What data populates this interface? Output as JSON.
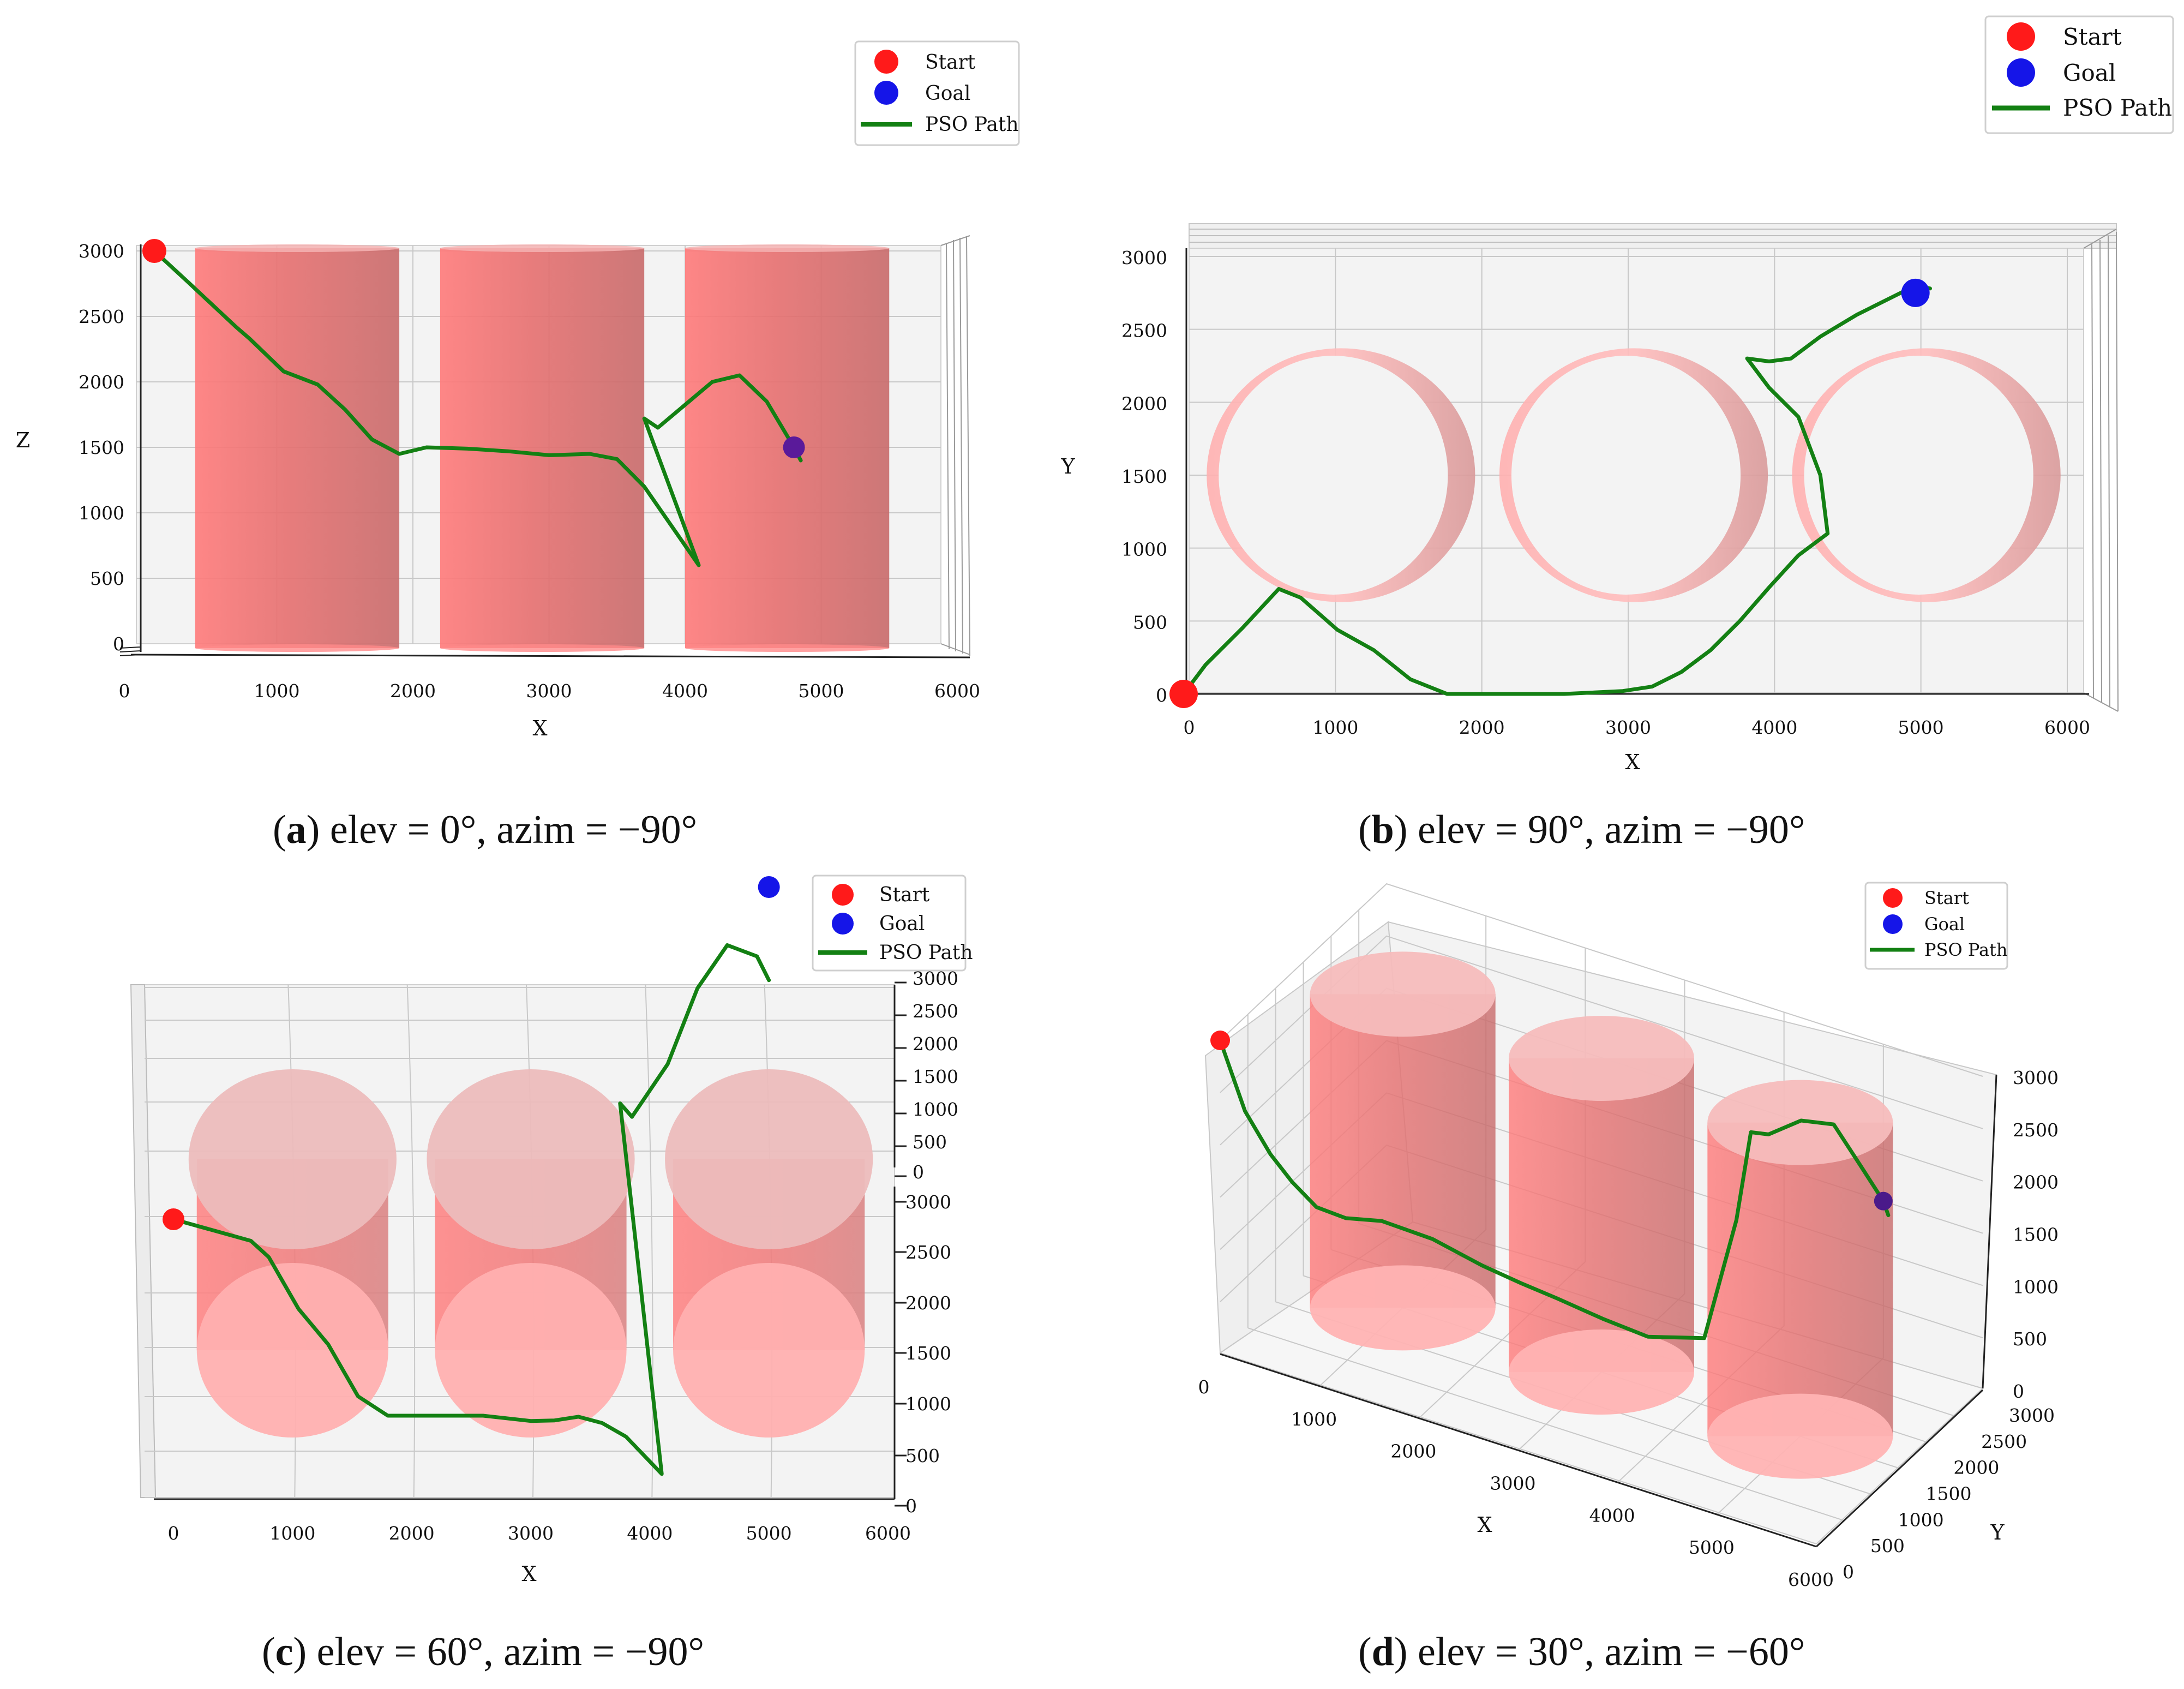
{
  "colors": {
    "start": "#ff1a1a",
    "goal": "#1515e8",
    "path": "#138013",
    "cylinder": "#ff6b6b",
    "pane": "#f3f3f3",
    "grid": "#c8c8c8"
  },
  "legend": {
    "start": "Start",
    "goal": "Goal",
    "path": "PSO Path"
  },
  "chart_data": [
    {
      "id": "a",
      "type": "line",
      "view": {
        "elev": 0,
        "azim": -90
      },
      "caption": {
        "letter": "a",
        "text": "elev = 0°, azim = −90°"
      },
      "title": "",
      "xlabel": "X",
      "zlabel": "Z",
      "xlim": [
        0,
        6000
      ],
      "zlim": [
        0,
        3000
      ],
      "xticks": [
        "0",
        "1000",
        "2000",
        "3000",
        "4000",
        "5000",
        "6000"
      ],
      "zticks": [
        "0",
        "500",
        "1000",
        "1500",
        "2000",
        "2500",
        "3000"
      ],
      "legend_position": "top-right",
      "start": [
        100,
        3000
      ],
      "goal": [
        4800,
        1500
      ],
      "path_xz": [
        [
          100,
          3000
        ],
        [
          350,
          2760
        ],
        [
          700,
          2420
        ],
        [
          800,
          2330
        ],
        [
          1050,
          2080
        ],
        [
          1300,
          1980
        ],
        [
          1500,
          1790
        ],
        [
          1700,
          1560
        ],
        [
          1900,
          1450
        ],
        [
          2100,
          1500
        ],
        [
          2400,
          1490
        ],
        [
          2700,
          1470
        ],
        [
          3000,
          1440
        ],
        [
          3300,
          1450
        ],
        [
          3500,
          1410
        ],
        [
          3700,
          1200
        ],
        [
          4100,
          600
        ],
        [
          3700,
          1720
        ],
        [
          3800,
          1650
        ],
        [
          4200,
          2000
        ],
        [
          4400,
          2050
        ],
        [
          4600,
          1850
        ],
        [
          4800,
          1500
        ],
        [
          4850,
          1400
        ]
      ],
      "obstacles": [
        {
          "x_min": 400,
          "x_max": 1900
        },
        {
          "x_min": 2200,
          "x_max": 3700
        },
        {
          "x_min": 4000,
          "x_max": 5500
        }
      ]
    },
    {
      "id": "b",
      "type": "line",
      "view": {
        "elev": 90,
        "azim": -90
      },
      "caption": {
        "letter": "b",
        "text": "elev = 90°, azim = −90°"
      },
      "title": "",
      "xlabel": "X",
      "ylabel": "Y",
      "xlim": [
        0,
        6000
      ],
      "ylim": [
        0,
        3000
      ],
      "xticks": [
        "0",
        "1000",
        "2000",
        "3000",
        "4000",
        "5000",
        "6000"
      ],
      "yticks": [
        "0",
        "500",
        "1000",
        "1500",
        "2000",
        "2500",
        "3000"
      ],
      "legend_position": "top-right",
      "start": [
        0,
        0
      ],
      "goal": [
        5000,
        2750
      ],
      "path_xy": [
        [
          0,
          0
        ],
        [
          150,
          200
        ],
        [
          400,
          450
        ],
        [
          650,
          720
        ],
        [
          800,
          660
        ],
        [
          1050,
          440
        ],
        [
          1300,
          300
        ],
        [
          1550,
          100
        ],
        [
          1800,
          0
        ],
        [
          2200,
          0
        ],
        [
          2600,
          0
        ],
        [
          3000,
          20
        ],
        [
          3200,
          50
        ],
        [
          3400,
          150
        ],
        [
          3600,
          300
        ],
        [
          3800,
          500
        ],
        [
          4000,
          730
        ],
        [
          4200,
          950
        ],
        [
          4400,
          1100
        ],
        [
          4350,
          1500
        ],
        [
          4200,
          1900
        ],
        [
          4000,
          2100
        ],
        [
          3850,
          2300
        ],
        [
          4000,
          2280
        ],
        [
          4150,
          2300
        ],
        [
          4350,
          2450
        ],
        [
          4600,
          2600
        ],
        [
          4900,
          2750
        ],
        [
          5000,
          2800
        ],
        [
          5100,
          2780
        ]
      ],
      "obstacles": [
        {
          "cx": 1000,
          "cy": 1500,
          "r": 850
        },
        {
          "cx": 3000,
          "cy": 1500,
          "r": 850
        },
        {
          "cx": 5000,
          "cy": 1500,
          "r": 850
        }
      ]
    },
    {
      "id": "c",
      "type": "line",
      "view": {
        "elev": 60,
        "azim": -90
      },
      "caption": {
        "letter": "c",
        "text": "elev = 60°, azim = −90°"
      },
      "title": "",
      "xlabel": "X",
      "xlim": [
        0,
        6000
      ],
      "ylim": [
        0,
        3000
      ],
      "zlim": [
        0,
        3000
      ],
      "xticks": [
        "0",
        "1000",
        "2000",
        "3000",
        "4000",
        "5000",
        "6000"
      ],
      "zticks": [
        "0",
        "500",
        "1000",
        "1500",
        "2000",
        "2500",
        "3000"
      ],
      "yticks": [
        "0",
        "500",
        "1000",
        "1500",
        "2000",
        "2500",
        "3000"
      ],
      "legend_position": "top-right",
      "start": [
        0,
        0,
        3000
      ],
      "goal": [
        5000,
        3000,
        1500
      ],
      "path_xyz": [
        [
          0,
          0,
          3000
        ],
        [
          650,
          700,
          2500
        ],
        [
          800,
          650,
          2400
        ],
        [
          1050,
          450,
          2100
        ],
        [
          1300,
          300,
          1900
        ],
        [
          1550,
          100,
          1600
        ],
        [
          1800,
          0,
          1500
        ],
        [
          2200,
          0,
          1500
        ],
        [
          2600,
          0,
          1500
        ],
        [
          3000,
          20,
          1450
        ],
        [
          3200,
          50,
          1440
        ],
        [
          3400,
          150,
          1420
        ],
        [
          3600,
          300,
          1300
        ],
        [
          3800,
          500,
          1100
        ],
        [
          4100,
          950,
          600
        ],
        [
          3750,
          2300,
          1700
        ],
        [
          3850,
          2280,
          1650
        ],
        [
          4150,
          2300,
          2000
        ],
        [
          4400,
          2500,
          2050
        ],
        [
          4650,
          2700,
          1850
        ],
        [
          4900,
          2800,
          1500
        ],
        [
          5000,
          2750,
          1450
        ]
      ],
      "obstacles": [
        {
          "cx": 1000,
          "cy": 1500,
          "r": 850
        },
        {
          "cx": 3000,
          "cy": 1500,
          "r": 850
        },
        {
          "cx": 5000,
          "cy": 1500,
          "r": 850
        }
      ]
    },
    {
      "id": "d",
      "type": "line",
      "view": {
        "elev": 30,
        "azim": -60
      },
      "caption": {
        "letter": "d",
        "text": "elev = 30°, azim = −60°"
      },
      "title": "",
      "xlabel": "X",
      "ylabel": "Y",
      "xlim": [
        0,
        6000
      ],
      "ylim": [
        0,
        3000
      ],
      "zlim": [
        0,
        3000
      ],
      "xticks": [
        "0",
        "1000",
        "2000",
        "3000",
        "4000",
        "5000",
        "6000"
      ],
      "yticks": [
        "0",
        "500",
        "1000",
        "1500",
        "2000",
        "2500",
        "3000"
      ],
      "zticks": [
        "0",
        "500",
        "1000",
        "1500",
        "2000",
        "2500",
        "3000"
      ],
      "legend_position": "top-right",
      "start": [
        0,
        0,
        3000
      ],
      "goal": [
        5000,
        3000,
        1500
      ],
      "obstacles": [
        {
          "cx": 1000,
          "cy": 1500,
          "r": 850
        },
        {
          "cx": 3000,
          "cy": 1500,
          "r": 850
        },
        {
          "cx": 5000,
          "cy": 1500,
          "r": 850
        }
      ]
    }
  ]
}
